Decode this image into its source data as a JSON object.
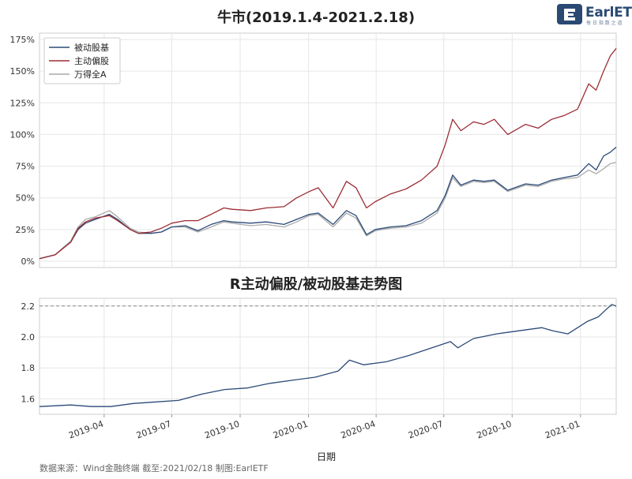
{
  "logo": {
    "text": "EarlETF",
    "subtext": "每 日 指 数 之 道"
  },
  "footer": {
    "source": "数据来源：Wind金融终端 截至:2021/02/18 制图:EarlETF"
  },
  "x_axis": {
    "label": "日期",
    "range": [
      "2019-01-04",
      "2021-02-18"
    ],
    "ticks": [
      "2019-04",
      "2019-07",
      "2019-10",
      "2020-01",
      "2020-04",
      "2020-07",
      "2020-10",
      "2021-01"
    ],
    "tick_dates": [
      "2019-04-01",
      "2019-07-01",
      "2019-10-01",
      "2020-01-01",
      "2020-04-01",
      "2020-07-01",
      "2020-10-01",
      "2021-01-01"
    ]
  },
  "colors": {
    "passive": "#2b4a78",
    "active": "#9b2d34",
    "market": "#a9a9a9",
    "ref_line": "#888888",
    "grid": "#e6e6e6"
  },
  "chart_data": [
    {
      "type": "line",
      "title": "牛市(2019.1.4-2021.2.18)",
      "ylim": [
        -0.05,
        1.8
      ],
      "yticks": [
        "0%",
        "25%",
        "50%",
        "75%",
        "100%",
        "125%",
        "150%",
        "175%"
      ],
      "ytick_values": [
        0,
        0.25,
        0.5,
        0.75,
        1.0,
        1.25,
        1.5,
        1.75
      ],
      "legend_position": "top-left",
      "series": [
        {
          "name": "被动股基",
          "color": "#2b4a78",
          "x": [
            "2019-01-04",
            "2019-01-25",
            "2019-02-15",
            "2019-02-25",
            "2019-03-07",
            "2019-03-20",
            "2019-04-08",
            "2019-04-19",
            "2019-05-06",
            "2019-05-17",
            "2019-06-03",
            "2019-06-17",
            "2019-07-01",
            "2019-07-19",
            "2019-08-05",
            "2019-08-23",
            "2019-09-09",
            "2019-09-20",
            "2019-10-15",
            "2019-11-05",
            "2019-11-29",
            "2019-12-16",
            "2020-01-02",
            "2020-01-14",
            "2020-02-03",
            "2020-02-21",
            "2020-03-05",
            "2020-03-19",
            "2020-03-31",
            "2020-04-20",
            "2020-05-11",
            "2020-06-01",
            "2020-06-22",
            "2020-07-03",
            "2020-07-13",
            "2020-07-24",
            "2020-08-10",
            "2020-08-24",
            "2020-09-07",
            "2020-09-25",
            "2020-10-19",
            "2020-11-05",
            "2020-11-23",
            "2020-12-10",
            "2020-12-28",
            "2021-01-12",
            "2021-01-22",
            "2021-02-01",
            "2021-02-10",
            "2021-02-18"
          ],
          "values": [
            0.02,
            0.05,
            0.15,
            0.25,
            0.3,
            0.33,
            0.37,
            0.33,
            0.25,
            0.22,
            0.22,
            0.23,
            0.27,
            0.28,
            0.24,
            0.29,
            0.32,
            0.31,
            0.3,
            0.31,
            0.29,
            0.33,
            0.37,
            0.38,
            0.29,
            0.4,
            0.36,
            0.21,
            0.25,
            0.27,
            0.28,
            0.32,
            0.4,
            0.52,
            0.68,
            0.6,
            0.64,
            0.63,
            0.64,
            0.56,
            0.61,
            0.6,
            0.64,
            0.66,
            0.68,
            0.77,
            0.72,
            0.83,
            0.86,
            0.9
          ]
        },
        {
          "name": "主动偏股",
          "color": "#9b2d34",
          "x": [
            "2019-01-04",
            "2019-01-25",
            "2019-02-15",
            "2019-02-25",
            "2019-03-07",
            "2019-03-20",
            "2019-04-08",
            "2019-04-19",
            "2019-05-06",
            "2019-05-17",
            "2019-06-03",
            "2019-06-17",
            "2019-07-01",
            "2019-07-19",
            "2019-08-05",
            "2019-08-23",
            "2019-09-09",
            "2019-09-20",
            "2019-10-15",
            "2019-11-05",
            "2019-11-29",
            "2019-12-16",
            "2020-01-02",
            "2020-01-14",
            "2020-02-03",
            "2020-02-21",
            "2020-03-05",
            "2020-03-19",
            "2020-03-31",
            "2020-04-20",
            "2020-05-11",
            "2020-06-01",
            "2020-06-22",
            "2020-07-03",
            "2020-07-13",
            "2020-07-24",
            "2020-08-10",
            "2020-08-24",
            "2020-09-07",
            "2020-09-25",
            "2020-10-19",
            "2020-11-05",
            "2020-11-23",
            "2020-12-10",
            "2020-12-28",
            "2021-01-12",
            "2021-01-22",
            "2021-02-01",
            "2021-02-10",
            "2021-02-18"
          ],
          "values": [
            0.02,
            0.05,
            0.15,
            0.26,
            0.31,
            0.34,
            0.36,
            0.32,
            0.25,
            0.22,
            0.23,
            0.26,
            0.3,
            0.32,
            0.32,
            0.37,
            0.42,
            0.41,
            0.4,
            0.42,
            0.43,
            0.5,
            0.55,
            0.58,
            0.42,
            0.63,
            0.58,
            0.42,
            0.47,
            0.53,
            0.57,
            0.64,
            0.75,
            0.92,
            1.12,
            1.03,
            1.1,
            1.08,
            1.12,
            1.0,
            1.08,
            1.05,
            1.12,
            1.15,
            1.2,
            1.4,
            1.35,
            1.5,
            1.62,
            1.68
          ]
        },
        {
          "name": "万得全A",
          "color": "#a9a9a9",
          "x": [
            "2019-01-04",
            "2019-01-25",
            "2019-02-15",
            "2019-02-25",
            "2019-03-07",
            "2019-03-20",
            "2019-04-08",
            "2019-04-19",
            "2019-05-06",
            "2019-05-17",
            "2019-06-03",
            "2019-06-17",
            "2019-07-01",
            "2019-07-19",
            "2019-08-05",
            "2019-08-23",
            "2019-09-09",
            "2019-09-20",
            "2019-10-15",
            "2019-11-05",
            "2019-11-29",
            "2019-12-16",
            "2020-01-02",
            "2020-01-14",
            "2020-02-03",
            "2020-02-21",
            "2020-03-05",
            "2020-03-19",
            "2020-03-31",
            "2020-04-20",
            "2020-05-11",
            "2020-06-01",
            "2020-06-22",
            "2020-07-03",
            "2020-07-13",
            "2020-07-24",
            "2020-08-10",
            "2020-08-24",
            "2020-09-07",
            "2020-09-25",
            "2020-10-19",
            "2020-11-05",
            "2020-11-23",
            "2020-12-10",
            "2020-12-28",
            "2021-01-12",
            "2021-01-22",
            "2021-02-01",
            "2021-02-10",
            "2021-02-18"
          ],
          "values": [
            0.02,
            0.05,
            0.16,
            0.27,
            0.33,
            0.35,
            0.4,
            0.35,
            0.26,
            0.23,
            0.22,
            0.23,
            0.27,
            0.27,
            0.23,
            0.27,
            0.31,
            0.3,
            0.28,
            0.29,
            0.27,
            0.31,
            0.36,
            0.37,
            0.27,
            0.38,
            0.34,
            0.2,
            0.24,
            0.26,
            0.27,
            0.3,
            0.38,
            0.5,
            0.66,
            0.59,
            0.63,
            0.62,
            0.63,
            0.55,
            0.6,
            0.59,
            0.63,
            0.65,
            0.66,
            0.72,
            0.69,
            0.73,
            0.77,
            0.78
          ]
        }
      ]
    },
    {
      "type": "line",
      "title": "R主动偏股/被动股基走势图",
      "ylim": [
        1.5,
        2.25
      ],
      "yticks": [
        "1.6",
        "1.8",
        "2.0",
        "2.2"
      ],
      "ytick_values": [
        1.6,
        1.8,
        2.0,
        2.2
      ],
      "reference_line": 2.2,
      "series": [
        {
          "color": "#2b4a78",
          "x": [
            "2019-01-04",
            "2019-02-15",
            "2019-03-15",
            "2019-04-10",
            "2019-05-10",
            "2019-06-10",
            "2019-07-10",
            "2019-08-10",
            "2019-09-10",
            "2019-10-10",
            "2019-11-10",
            "2019-12-10",
            "2020-01-10",
            "2020-02-10",
            "2020-02-25",
            "2020-03-15",
            "2020-04-15",
            "2020-05-15",
            "2020-06-15",
            "2020-07-10",
            "2020-07-20",
            "2020-08-10",
            "2020-09-10",
            "2020-10-10",
            "2020-11-10",
            "2020-11-25",
            "2020-12-15",
            "2021-01-10",
            "2021-01-25",
            "2021-02-05",
            "2021-02-12",
            "2021-02-18"
          ],
          "values": [
            1.55,
            1.56,
            1.55,
            1.55,
            1.57,
            1.58,
            1.59,
            1.63,
            1.66,
            1.67,
            1.7,
            1.72,
            1.74,
            1.78,
            1.85,
            1.82,
            1.84,
            1.88,
            1.93,
            1.97,
            1.93,
            1.99,
            2.02,
            2.04,
            2.06,
            2.04,
            2.02,
            2.1,
            2.13,
            2.18,
            2.21,
            2.2
          ]
        }
      ]
    }
  ]
}
